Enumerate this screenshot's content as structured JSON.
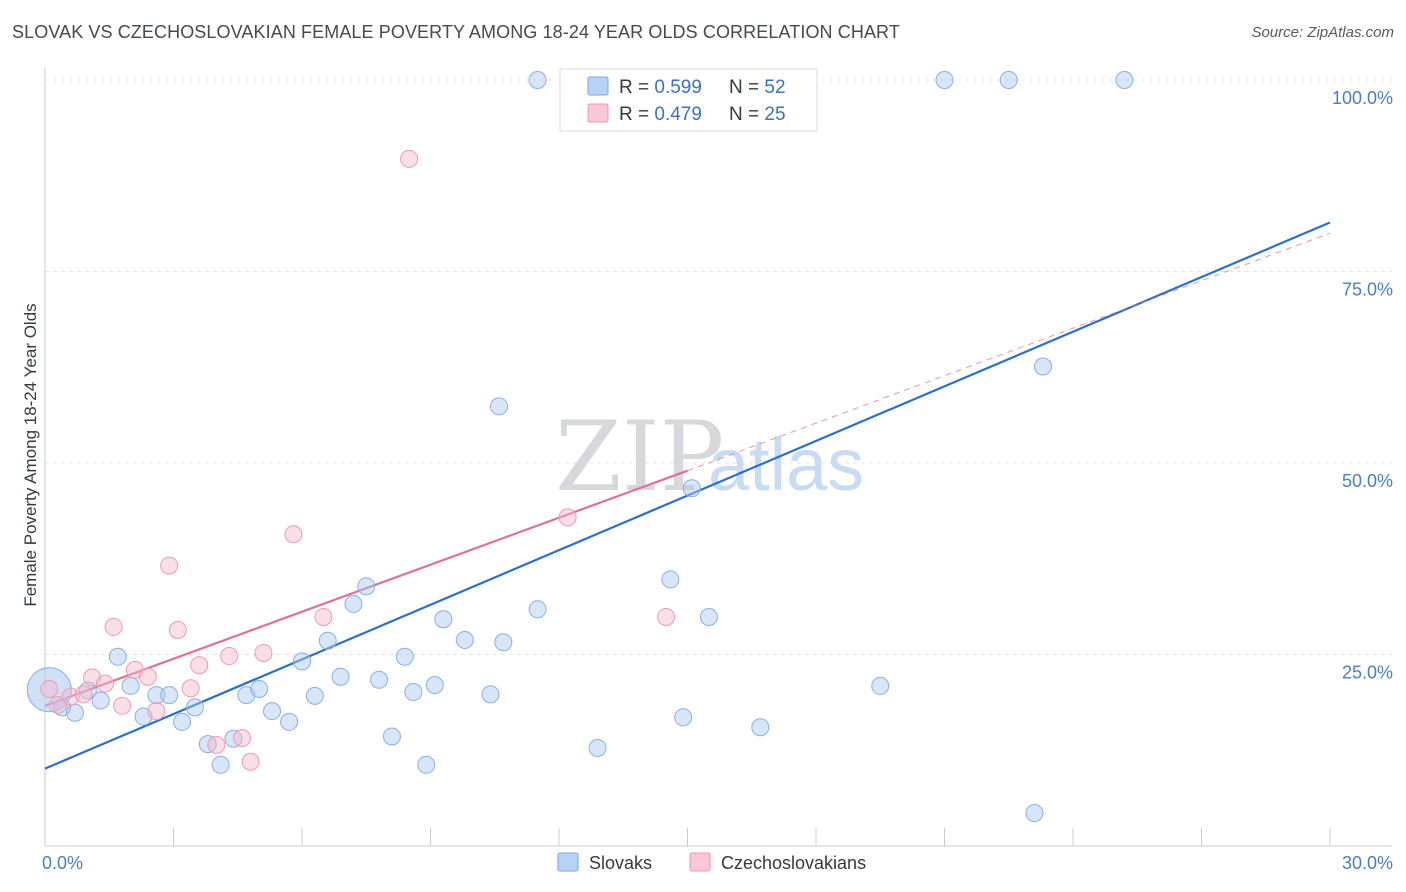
{
  "title": "SLOVAK VS CZECHOSLOVAKIAN FEMALE POVERTY AMONG 18-24 YEAR OLDS CORRELATION CHART",
  "source": "Source: ZipAtlas.com",
  "watermark": {
    "zip": "ZIP",
    "atlas": "atlas"
  },
  "legend": {
    "rows": [
      {
        "r_label": "R = ",
        "r_value": "0.599",
        "n_label": "N = ",
        "n_value": "52"
      },
      {
        "r_label": "R = ",
        "r_value": "0.479",
        "n_label": "N = ",
        "n_value": "25"
      }
    ]
  },
  "chart_data": {
    "type": "scatter",
    "title": "SLOVAK VS CZECHOSLOVAKIAN FEMALE POVERTY AMONG 18-24 YEAR OLDS CORRELATION CHART",
    "xlabel": "",
    "ylabel": "Female Poverty Among 18-24 Year Olds",
    "xlim": [
      0,
      30
    ],
    "ylim": [
      0,
      100
    ],
    "x_tick_labels": [
      "0.0%",
      "30.0%"
    ],
    "y_ticks": [
      25,
      50,
      75,
      100
    ],
    "y_tick_labels": [
      "25.0%",
      "50.0%",
      "75.0%",
      "100.0%"
    ],
    "grid": true,
    "legend_position": "top-center",
    "series": [
      {
        "name": "Slovaks",
        "color": "#a9c8f0",
        "line_color": "#2a6fcc",
        "points": [
          [
            0.1,
            20.4
          ],
          [
            0.4,
            18.1
          ],
          [
            0.7,
            17.4
          ],
          [
            1.0,
            20.3
          ],
          [
            1.3,
            19.0
          ],
          [
            1.7,
            24.7
          ],
          [
            2.0,
            20.9
          ],
          [
            2.3,
            16.9
          ],
          [
            2.6,
            19.7
          ],
          [
            2.9,
            19.7
          ],
          [
            3.2,
            16.2
          ],
          [
            3.5,
            18.1
          ],
          [
            3.8,
            13.3
          ],
          [
            4.1,
            10.6
          ],
          [
            4.4,
            14.0
          ],
          [
            4.7,
            19.7
          ],
          [
            5.0,
            20.5
          ],
          [
            5.3,
            17.6
          ],
          [
            5.7,
            16.2
          ],
          [
            6.0,
            24.1
          ],
          [
            6.3,
            19.6
          ],
          [
            6.6,
            26.8
          ],
          [
            6.9,
            22.1
          ],
          [
            7.2,
            31.6
          ],
          [
            7.5,
            33.9
          ],
          [
            7.8,
            21.7
          ],
          [
            8.1,
            14.3
          ],
          [
            8.4,
            24.7
          ],
          [
            8.6,
            20.1
          ],
          [
            8.9,
            10.6
          ],
          [
            9.1,
            21.0
          ],
          [
            9.3,
            29.6
          ],
          [
            9.8,
            26.9
          ],
          [
            10.4,
            19.8
          ],
          [
            10.6,
            57.4
          ],
          [
            10.7,
            26.6
          ],
          [
            11.5,
            30.9
          ],
          [
            11.5,
            100.0
          ],
          [
            12.9,
            12.8
          ],
          [
            14.6,
            34.8
          ],
          [
            14.9,
            16.8
          ],
          [
            15.1,
            46.7
          ],
          [
            15.5,
            29.9
          ],
          [
            16.0,
            97.5
          ],
          [
            16.3,
            100.0
          ],
          [
            16.7,
            15.5
          ],
          [
            19.5,
            20.9
          ],
          [
            21.0,
            100.0
          ],
          [
            22.5,
            100.0
          ],
          [
            23.1,
            4.3
          ],
          [
            23.3,
            62.6
          ],
          [
            25.2,
            100.0
          ]
        ],
        "trend": {
          "x": [
            0,
            30
          ],
          "y": [
            10.1,
            81.4
          ]
        }
      },
      {
        "name": "Czechoslovakians",
        "color": "#f6b9ca",
        "line_color": "#e07097",
        "points": [
          [
            0.3,
            18.4
          ],
          [
            0.6,
            19.5
          ],
          [
            0.9,
            19.8
          ],
          [
            1.1,
            22.0
          ],
          [
            1.4,
            21.2
          ],
          [
            1.6,
            28.6
          ],
          [
            1.8,
            18.3
          ],
          [
            2.1,
            23.0
          ],
          [
            2.4,
            22.1
          ],
          [
            2.6,
            17.6
          ],
          [
            2.9,
            36.6
          ],
          [
            3.1,
            28.2
          ],
          [
            3.4,
            20.6
          ],
          [
            3.6,
            23.6
          ],
          [
            4.0,
            13.2
          ],
          [
            4.3,
            24.8
          ],
          [
            4.6,
            14.1
          ],
          [
            4.8,
            11.0
          ],
          [
            5.1,
            25.2
          ],
          [
            5.8,
            40.7
          ],
          [
            6.5,
            29.9
          ],
          [
            8.5,
            89.7
          ],
          [
            12.2,
            42.9
          ],
          [
            14.5,
            29.9
          ],
          [
            0.1,
            20.5
          ]
        ],
        "trend": {
          "x": [
            0,
            15
          ],
          "y": [
            18.3,
            49.0
          ]
        },
        "trend_extension": {
          "x": [
            15,
            30
          ],
          "y": [
            49.0,
            80.0
          ]
        }
      }
    ]
  }
}
